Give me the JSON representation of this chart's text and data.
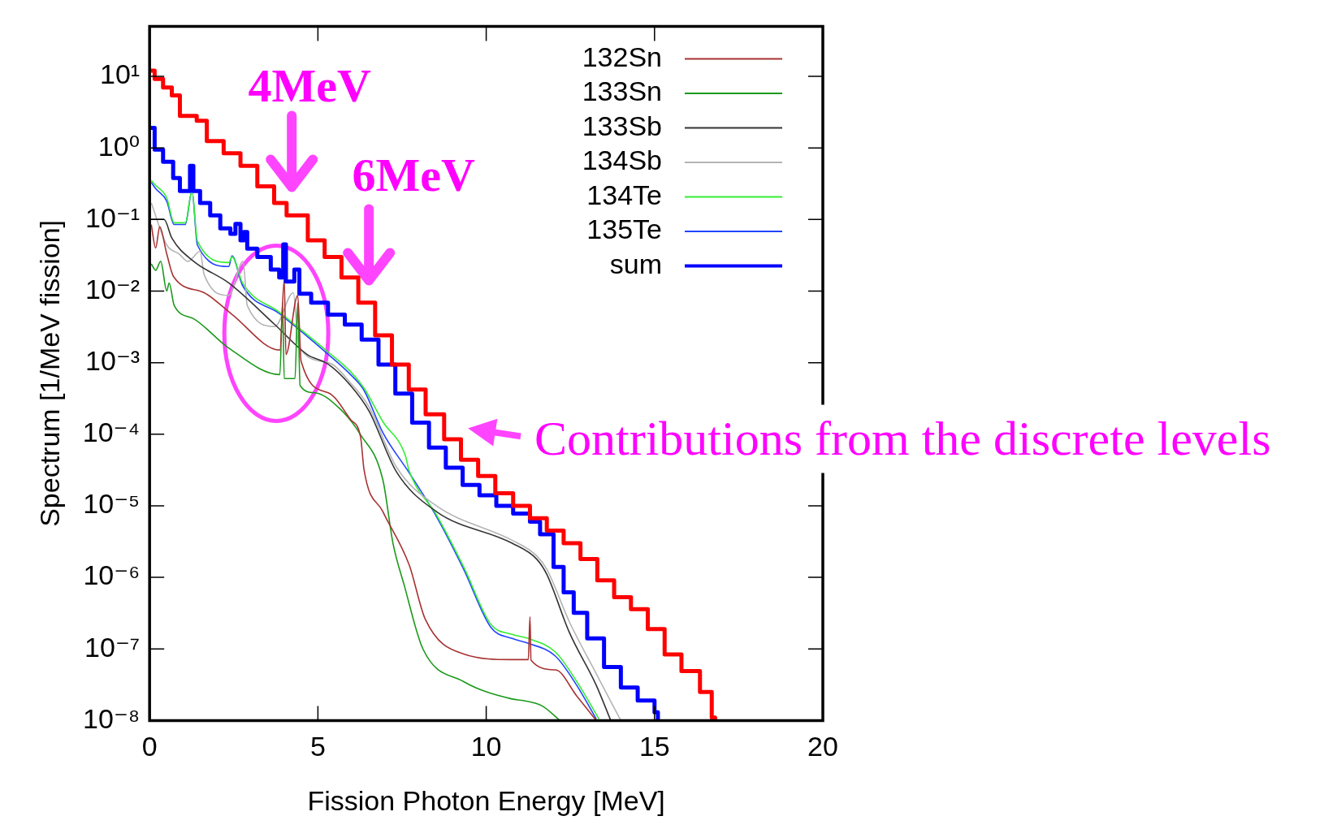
{
  "chart_data": {
    "type": "line",
    "xlabel": "Fission Photon Energy [MeV]",
    "ylabel": "Spectrum [1/MeV fission]",
    "xlim": [
      0,
      20
    ],
    "xticks": [
      0,
      5,
      10,
      15,
      20
    ],
    "ylim": [
      1e-08,
      50
    ],
    "yticks": [
      {
        "value": 10,
        "label": "10¹"
      },
      {
        "value": 1,
        "label": "10⁰"
      },
      {
        "value": 0.1,
        "label": "10⁻¹"
      },
      {
        "value": 0.01,
        "label": "10⁻²"
      },
      {
        "value": 0.001,
        "label": "10⁻³"
      },
      {
        "value": 0.0001,
        "label": "10⁻⁴"
      },
      {
        "value": 1e-05,
        "label": "10⁻⁵"
      },
      {
        "value": 1e-06,
        "label": "10⁻⁶"
      },
      {
        "value": 1e-07,
        "label": "10⁻⁷"
      },
      {
        "value": 1e-08,
        "label": "10⁻⁸"
      }
    ],
    "log": "y",
    "grid": false,
    "legend": "top right",
    "marker": "none",
    "series": [
      {
        "type": "step",
        "color": "#ff0000",
        "x": [
          0,
          0.15,
          0.4,
          0.66,
          0.9,
          1.4,
          1.7,
          2.2,
          2.7,
          3.2,
          3.7,
          4.07,
          4.7,
          5.2,
          5.7,
          6.2,
          6.7,
          7.2,
          7.7,
          8.2,
          8.75,
          9.25,
          9.76,
          10.27,
          10.8,
          11.3,
          11.8,
          12.3,
          12.8,
          13.3,
          13.8,
          14.3,
          14.8,
          15.3,
          15.8,
          16.35,
          16.7,
          16.8
        ],
        "values": [
          12,
          9.2,
          7,
          5.4,
          2.8,
          2.4,
          1.25,
          0.84,
          0.56,
          0.29,
          0.17,
          0.114,
          0.051,
          0.03,
          0.0155,
          0.0069,
          0.0024,
          0.00094,
          0.00042,
          0.00019,
          8.5e-05,
          4.4e-05,
          2.6e-05,
          1.5e-05,
          1e-05,
          6.7e-06,
          4.5e-06,
          3e-06,
          1.8e-06,
          9.1e-07,
          5.3e-07,
          3.6e-07,
          1.9e-07,
          8.4e-08,
          4.9e-08,
          2.5e-08,
          1.1e-08,
          1e-08
        ]
      },
      {
        "name": "132Sn",
        "color": "#a83232",
        "x": [
          0.05,
          0.18,
          0.3,
          0.51,
          0.71,
          1.62,
          2.43,
          3.87,
          4.0,
          4.05,
          4.4,
          4.5,
          5.31,
          5.97,
          6.27,
          6.37,
          6.93,
          7.71,
          8.19,
          9.33,
          10.77,
          11.25,
          11.3,
          11.33,
          12.06,
          12.69,
          13.27
        ],
        "values": [
          0.085,
          0.04,
          0.079,
          0.033,
          0.016,
          0.0095,
          0.0048,
          0.0015,
          0.0145,
          0.0013,
          0.0087,
          0.00105,
          0.00038,
          0.00016,
          9e-05,
          3.2e-05,
          8.3e-06,
          1.5e-06,
          2.6e-07,
          8.5e-08,
          7.1e-08,
          7.1e-08,
          2.8e-07,
          7e-08,
          5.1e-08,
          2.2e-08,
          1e-08
        ]
      },
      {
        "name": "133Sn",
        "color": "#1a9a1a",
        "x": [
          0.05,
          0.18,
          0.33,
          0.51,
          0.58,
          0.73,
          1.31,
          2.35,
          3.87,
          3.95,
          4.0,
          4.32,
          4.4,
          4.47,
          4.9,
          5.64,
          6.27,
          6.93,
          7.23,
          7.56,
          8.12,
          9.33,
          10.77,
          11.1,
          11.66,
          12.19
        ],
        "values": [
          0.024,
          0.0195,
          0.026,
          0.01,
          0.013,
          0.0063,
          0.0041,
          0.0016,
          0.00068,
          0.0068,
          0.0006,
          0.0006,
          0.0068,
          0.00048,
          0.00038,
          0.00023,
          9.8e-05,
          2.3e-05,
          3e-06,
          7.9e-07,
          1e-07,
          3.5e-08,
          2e-08,
          1.9e-08,
          1.6e-08,
          1e-08
        ]
      },
      {
        "name": "133Sb",
        "color": "#333333",
        "x": [
          0,
          0.43,
          0.66,
          1.31,
          2.35,
          3.72,
          4.68,
          5.31,
          5.97,
          6.52,
          7.33,
          8.52,
          10.77,
          11.5,
          11.8,
          12.47,
          13.27,
          13.7
        ],
        "values": [
          0.1,
          0.1,
          0.055,
          0.026,
          0.013,
          0.0034,
          0.0013,
          0.00095,
          0.00048,
          0.00021,
          3e-05,
          8.3e-06,
          3e-06,
          1.8e-06,
          1.1e-06,
          1.7e-07,
          3.1e-08,
          1e-08
        ]
      },
      {
        "name": "134Sb",
        "color": "#b4b4b4",
        "x": [
          0.05,
          0.51,
          0.88,
          1.14,
          1.5,
          1.62,
          2.35,
          2.78,
          2.9,
          3.72,
          4.27,
          4.43,
          5.31,
          5.97,
          6.52,
          7.33,
          8.52,
          10.77,
          11.5,
          11.8,
          12.47,
          13.27,
          14.0
        ],
        "values": [
          0.17,
          0.044,
          0.033,
          0.026,
          0.036,
          0.017,
          0.0087,
          0.026,
          0.0063,
          0.0032,
          0.0095,
          0.0017,
          0.001,
          0.00052,
          0.00024,
          3.5e-05,
          1e-05,
          3.3e-06,
          2e-06,
          1.3e-06,
          2.4e-07,
          4.5e-08,
          1e-08
        ]
      },
      {
        "name": "134Te",
        "color": "#33ee33",
        "x": [
          0.05,
          0.18,
          0.51,
          0.73,
          1.06,
          1.26,
          1.42,
          2.35,
          2.45,
          2.76,
          3.87,
          5.31,
          5.97,
          6.37,
          6.93,
          7.6,
          7.7,
          8.52,
          9.33,
          10.14,
          10.77,
          11.25,
          12.06,
          12.69,
          13.35
        ],
        "values": [
          0.35,
          0.3,
          0.2,
          0.09,
          0.09,
          0.25,
          0.05,
          0.025,
          0.03,
          0.013,
          0.005,
          0.0014,
          0.00075,
          0.00044,
          0.00015,
          5e-05,
          3.2e-05,
          7.5e-06,
          1.4e-06,
          2.2e-07,
          1.6e-07,
          1.4e-07,
          9e-08,
          3.5e-08,
          1.05e-08
        ]
      },
      {
        "name": "135Te",
        "color": "#2244ff",
        "x": [
          0.05,
          0.18,
          0.51,
          0.73,
          1.06,
          1.26,
          1.42,
          2.35,
          2.45,
          2.76,
          3.87,
          5.31,
          5.97,
          6.37,
          6.93,
          7.71,
          8.52,
          9.33,
          10.14,
          10.77,
          11.25,
          12.06,
          12.69,
          13.27
        ],
        "values": [
          0.33,
          0.27,
          0.18,
          0.085,
          0.085,
          0.25,
          0.044,
          0.022,
          0.031,
          0.012,
          0.0048,
          0.0013,
          0.00068,
          0.00041,
          0.000105,
          2.9e-05,
          7.1e-06,
          1.3e-06,
          2e-07,
          1.4e-07,
          1.2e-07,
          7.9e-08,
          3.1e-08,
          1.05e-08
        ]
      },
      {
        "name": "sum",
        "type": "step",
        "color": "#0000ff",
        "x": [
          0,
          0.15,
          0.4,
          0.7,
          0.9,
          1.05,
          1.2,
          1.3,
          1.5,
          1.8,
          2.1,
          2.4,
          2.55,
          2.7,
          2.8,
          2.9,
          3.2,
          3.6,
          3.85,
          3.97,
          4.05,
          4.3,
          4.45,
          4.8,
          5.3,
          5.8,
          6.3,
          6.8,
          7.3,
          7.8,
          8.3,
          8.8,
          9.3,
          9.8,
          10.3,
          10.8,
          11.3,
          11.6,
          12.0,
          12.3,
          12.6,
          13.0,
          13.5,
          14.0,
          14.5,
          15.0,
          15.1
        ],
        "values": [
          1.9,
          0.95,
          0.64,
          0.38,
          0.25,
          0.25,
          0.56,
          0.25,
          0.17,
          0.114,
          0.075,
          0.063,
          0.087,
          0.051,
          0.067,
          0.039,
          0.03,
          0.02,
          0.0155,
          0.045,
          0.0136,
          0.02,
          0.0092,
          0.0069,
          0.0047,
          0.0034,
          0.0021,
          0.00094,
          0.00037,
          0.000145,
          6.5e-05,
          3.4e-05,
          1.96e-05,
          1.4e-05,
          1e-05,
          7.8e-06,
          6e-06,
          4e-06,
          1.4e-06,
          6.2e-07,
          3.2e-07,
          1.4e-07,
          5.6e-08,
          2.9e-08,
          1.9e-08,
          1.3e-08,
          1e-08
        ]
      }
    ],
    "annotations": [
      "4MeV",
      "6MeV",
      "Contributions from the discrete levels"
    ]
  }
}
